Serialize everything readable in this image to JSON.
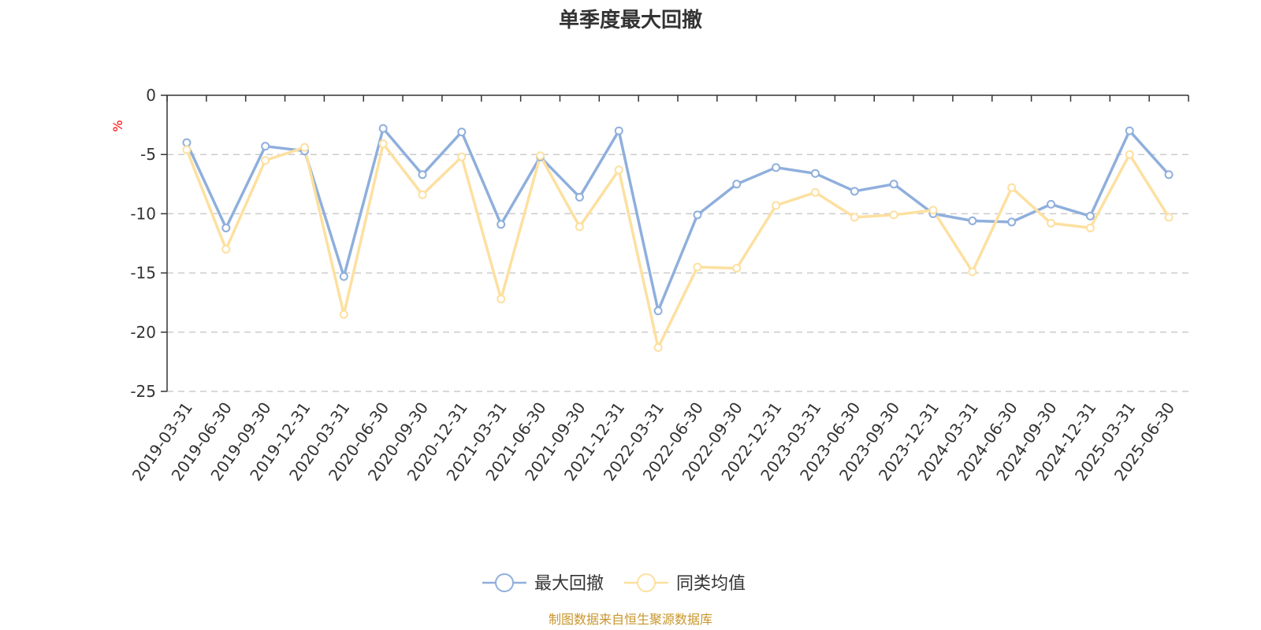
{
  "chart_data": {
    "type": "line",
    "title": "单季度最大回撤",
    "ylabel": "%",
    "ylim": [
      -25,
      0
    ],
    "yticks": [
      0,
      -5,
      -10,
      -15,
      -20,
      -25
    ],
    "grid": true,
    "legend_position": "bottom-center",
    "categories": [
      "2019-03-31",
      "2019-06-30",
      "2019-09-30",
      "2019-12-31",
      "2020-03-31",
      "2020-06-30",
      "2020-09-30",
      "2020-12-31",
      "2021-03-31",
      "2021-06-30",
      "2021-09-30",
      "2021-12-31",
      "2022-03-31",
      "2022-06-30",
      "2022-09-30",
      "2022-12-31",
      "2023-03-31",
      "2023-06-30",
      "2023-09-30",
      "2023-12-31",
      "2024-03-31",
      "2024-06-30",
      "2024-09-30",
      "2024-12-31",
      "2025-03-31",
      "2025-06-30"
    ],
    "series": [
      {
        "name": "最大回撤",
        "color": "#8fafdc",
        "values": [
          -4.0,
          -11.2,
          -4.3,
          -4.7,
          -15.3,
          -2.8,
          -6.7,
          -3.1,
          -10.9,
          -5.2,
          -8.6,
          -3.0,
          -18.2,
          -10.1,
          -7.5,
          -6.1,
          -6.6,
          -8.1,
          -7.5,
          -10.0,
          -10.6,
          -10.7,
          -9.2,
          -10.2,
          -3.0,
          -6.7
        ]
      },
      {
        "name": "同类均值",
        "color": "#fde0a0",
        "values": [
          -4.6,
          -13.0,
          -5.5,
          -4.4,
          -18.5,
          -4.1,
          -8.4,
          -5.2,
          -17.2,
          -5.1,
          -11.1,
          -6.3,
          -21.3,
          -14.5,
          -14.6,
          -9.3,
          -8.2,
          -10.3,
          -10.1,
          -9.7,
          -14.9,
          -7.8,
          -10.8,
          -11.2,
          -5.0,
          -10.3
        ]
      }
    ],
    "source": "制图数据来自恒生聚源数据库",
    "source_color": "#c8962c",
    "unit_color": "#ff0000"
  }
}
